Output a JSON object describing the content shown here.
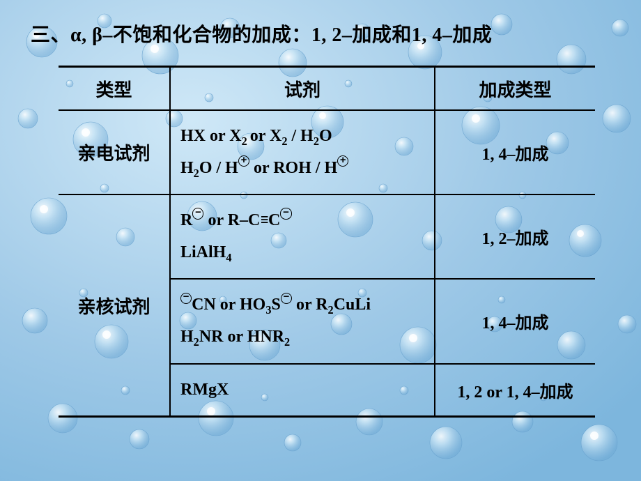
{
  "background": {
    "base_color": "#9cc9e8",
    "highlight_color": "#d8ecf8",
    "dark_color": "#6aa9d6",
    "droplet_fill": "#bedff3",
    "droplet_highlight": "#ffffff",
    "droplet_shadow": "#5a98c6"
  },
  "title": {
    "prefix": "三、",
    "greek": "α, β–",
    "mid": "不饱和化合物的加成：",
    "tail": "1, 2–加成和1, 4–加成"
  },
  "table": {
    "headers": {
      "type": "类型",
      "reagent": "试剂",
      "addition": "加成类型"
    },
    "rows": [
      {
        "type_label": "亲电试剂",
        "reagent_lines": [
          "HX or X<sub>2 </sub>or X<sub>2</sub> / H<sub>2</sub>O",
          "H<sub>2</sub>O / H<span class=\"circle-plus\"></span> or ROH / H<span class=\"circle-plus\"></span>"
        ],
        "addition": "1, 4–加成",
        "rowspan_type": 1
      },
      {
        "type_label": "亲核试剂",
        "rowspan_type": 3,
        "sub_rows": [
          {
            "reagent_lines": [
              "R<span class=\"circle-minus\"></span> or R–C<span class=\"triple\">≡</span>C<span class=\"circle-minus\"></span>",
              "LiAlH<sub>4</sub>"
            ],
            "addition": "1, 2–加成"
          },
          {
            "reagent_lines": [
              "<span class=\"circle-minus\"></span>CN or HO<sub>3</sub>S<span class=\"circle-minus\"></span> or R<sub>2</sub>CuLi",
              "H<sub>2</sub>NR or HNR<sub>2</sub>"
            ],
            "addition": "1, 4–加成"
          },
          {
            "reagent_lines": [
              "RMgX"
            ],
            "addition": "1, 2 or 1, 4–加成"
          }
        ]
      }
    ]
  }
}
